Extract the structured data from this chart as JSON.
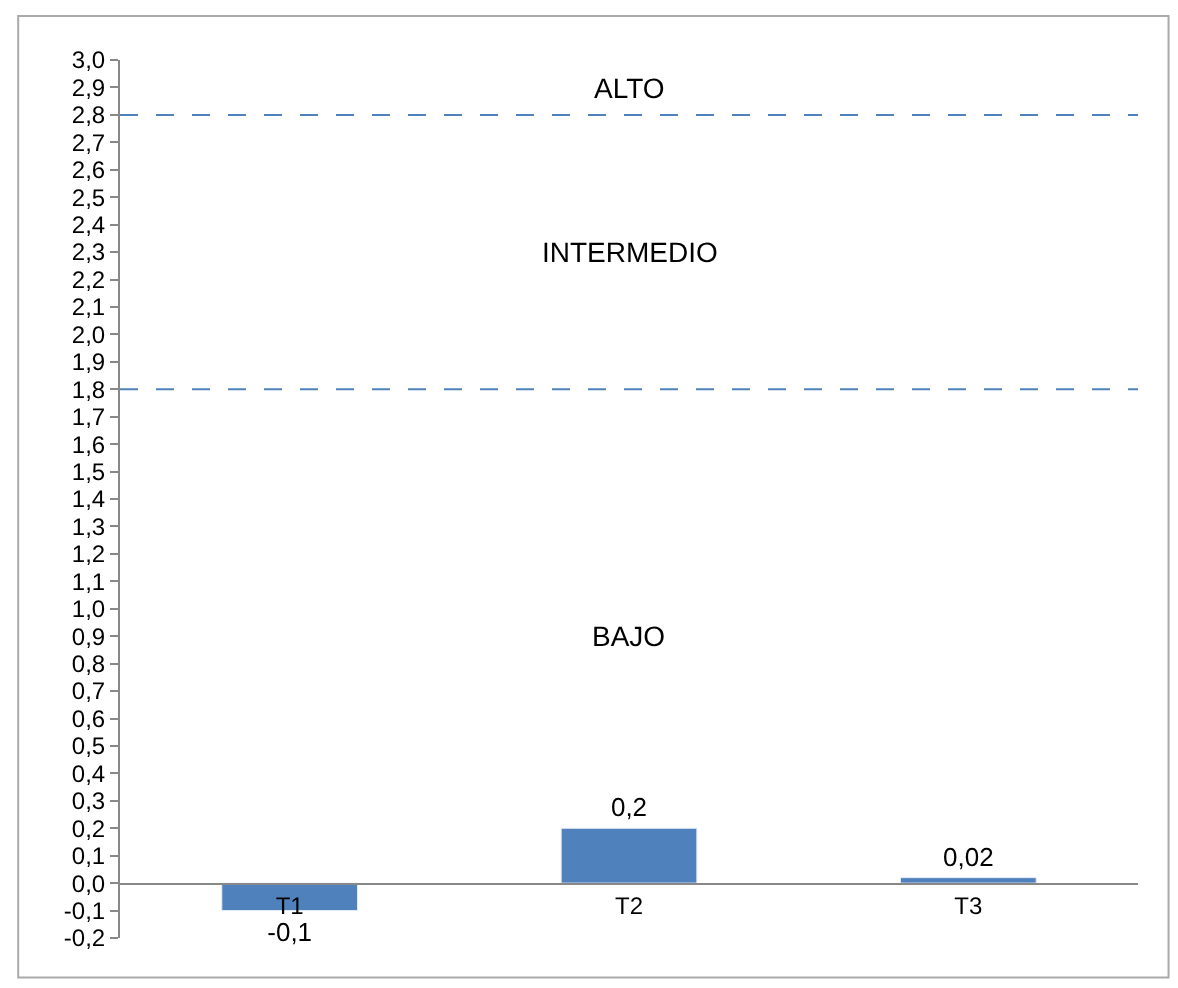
{
  "chart_data": {
    "type": "bar",
    "categories": [
      "T1",
      "T2",
      "T3"
    ],
    "values": [
      -0.1,
      0.2,
      0.02
    ],
    "value_labels": [
      "-0,1",
      "0,2",
      "0,02"
    ],
    "color": "#4f81bd",
    "ylim": [
      -0.2,
      3.0
    ],
    "yticks": [
      {
        "value": -0.2,
        "label": "-0,2"
      },
      {
        "value": -0.1,
        "label": "-0,1"
      },
      {
        "value": 0,
        "label": "0,0"
      },
      {
        "value": 0.1,
        "label": "0,1"
      },
      {
        "value": 0.2,
        "label": "0,2"
      },
      {
        "value": 0.3,
        "label": "0,3"
      },
      {
        "value": 0.4,
        "label": "0,4"
      },
      {
        "value": 0.5,
        "label": "0,5"
      },
      {
        "value": 0.6,
        "label": "0,6"
      },
      {
        "value": 0.7,
        "label": "0,7"
      },
      {
        "value": 0.8,
        "label": "0,8"
      },
      {
        "value": 0.9,
        "label": "0,9"
      },
      {
        "value": 1.0,
        "label": "1,0"
      },
      {
        "value": 1.1,
        "label": "1,1"
      },
      {
        "value": 1.2,
        "label": "1,2"
      },
      {
        "value": 1.3,
        "label": "1,3"
      },
      {
        "value": 1.4,
        "label": "1,4"
      },
      {
        "value": 1.5,
        "label": "1,5"
      },
      {
        "value": 1.6,
        "label": "1,6"
      },
      {
        "value": 1.7,
        "label": "1,7"
      },
      {
        "value": 1.8,
        "label": "1,8"
      },
      {
        "value": 1.9,
        "label": "1,9"
      },
      {
        "value": 2.0,
        "label": "2,0"
      },
      {
        "value": 2.1,
        "label": "2,1"
      },
      {
        "value": 2.2,
        "label": "2,2"
      },
      {
        "value": 2.3,
        "label": "2,3"
      },
      {
        "value": 2.4,
        "label": "2,4"
      },
      {
        "value": 2.5,
        "label": "2,5"
      },
      {
        "value": 2.6,
        "label": "2,6"
      },
      {
        "value": 2.7,
        "label": "2,7"
      },
      {
        "value": 2.8,
        "label": "2,8"
      },
      {
        "value": 2.9,
        "label": "2,9"
      },
      {
        "value": 3.0,
        "label": "3,0"
      }
    ],
    "ref_lines": [
      {
        "axis": "y",
        "value": 2.8,
        "color": "#4f81bd",
        "line_style": "dashed"
      },
      {
        "axis": "y",
        "value": 1.8,
        "color": "#4f81bd",
        "line_style": "dashed"
      }
    ],
    "annotations": [
      "ALTO",
      "INTERMEDIO",
      "BAJO"
    ],
    "legend": false
  }
}
